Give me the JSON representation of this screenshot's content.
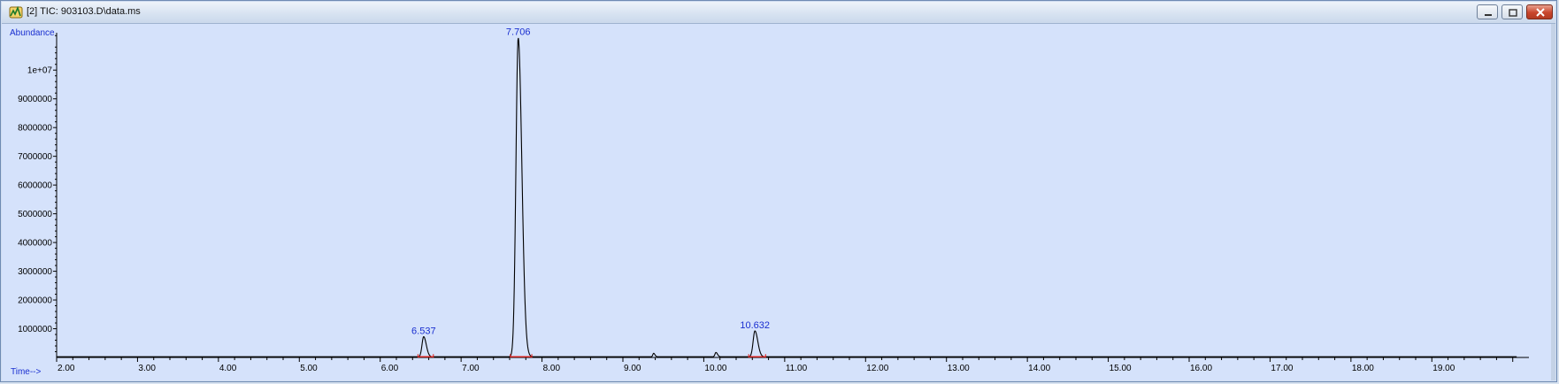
{
  "window": {
    "title": "[2] TIC: 903103.D\\data.ms",
    "icon": "chromatogram-app-icon",
    "buttons": [
      "minimize",
      "restore",
      "close"
    ]
  },
  "chart_data": {
    "type": "line",
    "ylabel": "Abundance",
    "xlabel": "Time-->",
    "xlim": [
      2.0,
      20.2
    ],
    "ylim": [
      0,
      11300000
    ],
    "x_ticks": [
      "2.00",
      "3.00",
      "4.00",
      "5.00",
      "6.00",
      "7.00",
      "8.00",
      "9.00",
      "10.00",
      "11.00",
      "12.00",
      "13.00",
      "14.00",
      "15.00",
      "16.00",
      "17.00",
      "18.00",
      "19.00"
    ],
    "y_ticks": [
      "1000000",
      "2000000",
      "3000000",
      "4000000",
      "5000000",
      "6000000",
      "7000000",
      "8000000",
      "9000000",
      "1e+07"
    ],
    "y_tick_values": [
      1000000,
      2000000,
      3000000,
      4000000,
      5000000,
      6000000,
      7000000,
      8000000,
      9000000,
      10000000
    ],
    "peaks": [
      {
        "label": "6.537",
        "rt": 6.537,
        "height": 700000,
        "width": 0.02
      },
      {
        "label": "7.706",
        "rt": 7.706,
        "height": 11100000,
        "width": 0.028
      },
      {
        "label": "10.632",
        "rt": 10.632,
        "height": 900000,
        "width": 0.022
      }
    ],
    "minor_peaks": [
      {
        "rt": 9.38,
        "height": 120000,
        "width": 0.01
      },
      {
        "rt": 10.15,
        "height": 150000,
        "width": 0.012
      }
    ],
    "trace_color": "#000000",
    "baseline_color": "#e0201c",
    "label_color": "#1a2fd0",
    "background": "#d5e2fb"
  }
}
